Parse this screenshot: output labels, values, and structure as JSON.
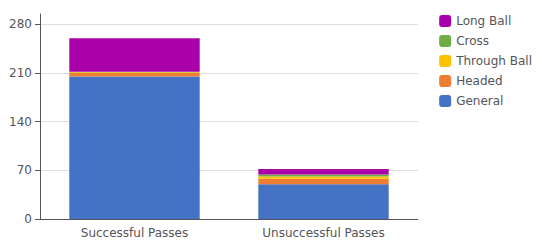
{
  "chart_data": {
    "type": "bar",
    "stacked": true,
    "categories": [
      "Successful Passes",
      "Unsuccessful Passes"
    ],
    "series": [
      {
        "name": "General",
        "color": "#4472C4",
        "values": [
          205,
          50
        ]
      },
      {
        "name": "Headed",
        "color": "#ED7D31",
        "values": [
          5,
          8
        ]
      },
      {
        "name": "Through Ball",
        "color": "#FFC000",
        "values": [
          1,
          3
        ]
      },
      {
        "name": "Cross",
        "color": "#70AD47",
        "values": [
          1,
          3
        ]
      },
      {
        "name": "Long Ball",
        "color": "#AA00AA",
        "values": [
          48,
          8
        ]
      }
    ],
    "ylim": [
      0,
      295
    ],
    "yticks": [
      0,
      70,
      140,
      210,
      280
    ],
    "grid": true,
    "legend": "right"
  }
}
